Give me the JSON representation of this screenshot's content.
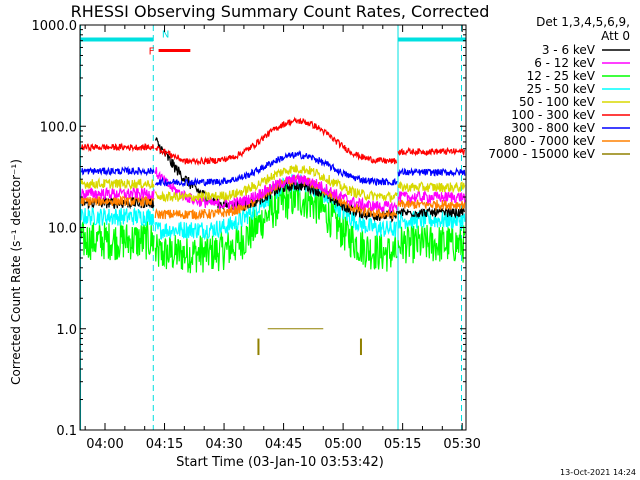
{
  "chart_data": {
    "type": "line",
    "title": "RHESSI Observing Summary Count Rates, Corrected",
    "xlabel": "Start Time (03-Jan-10 03:53:42)",
    "ylabel": "Corrected Count Rate (s⁻¹ detector⁻¹)",
    "y_scale": "log",
    "ylim": [
      0.1,
      1000
    ],
    "y_ticks": [
      {
        "value": 0.1,
        "label": "0.1"
      },
      {
        "value": 1,
        "label": "1.0"
      },
      {
        "value": 10,
        "label": "10.0"
      },
      {
        "value": 100,
        "label": "100.0"
      },
      {
        "value": 1000,
        "label": "1000.0"
      }
    ],
    "xlim": [
      "03:53:42",
      "05:30:58"
    ],
    "x_ticks": [
      "04:00",
      "04:15",
      "04:30",
      "04:45",
      "05:00",
      "05:15",
      "05:30"
    ],
    "timestamp": "13-Oct-2021 14:24",
    "legend": {
      "placement": "right",
      "header": [
        "Det 1,3,4,5,6,9,",
        "Att 0"
      ]
    },
    "flags": [
      {
        "label": "N",
        "color": "#00e0e0"
      },
      {
        "label": "F",
        "color": "#ff0000"
      }
    ],
    "series": [
      {
        "name": "3 - 6 keV",
        "color": "#000000"
      },
      {
        "name": "6 - 12 keV",
        "color": "#ff00ff"
      },
      {
        "name": "12 - 25 keV",
        "color": "#00ff00"
      },
      {
        "name": "25 - 50 keV",
        "color": "#00ffff"
      },
      {
        "name": "50 - 100 keV",
        "color": "#d8d800"
      },
      {
        "name": "100 - 300 keV",
        "color": "#ff0000"
      },
      {
        "name": "300 - 800 keV",
        "color": "#0000ff"
      },
      {
        "name": "800 - 7000 keV",
        "color": "#ff8000"
      },
      {
        "name": "7000 - 15000 keV",
        "color": "#908000"
      }
    ]
  }
}
